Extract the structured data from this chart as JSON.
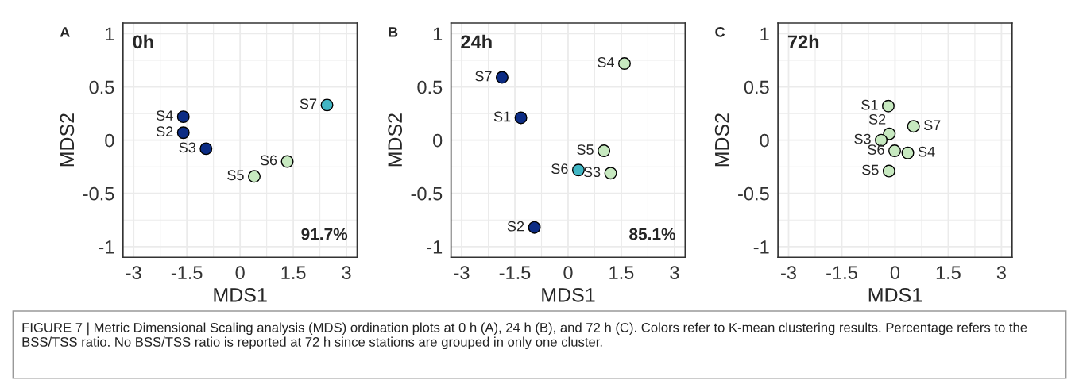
{
  "chart_data": [
    {
      "type": "scatter",
      "xlabel": "MDS1",
      "ylabel": "MDS2",
      "xlim": [
        -3.3,
        3.3
      ],
      "ylim": [
        -1.1,
        1.1
      ],
      "xticks": [
        -3,
        -1.5,
        0,
        1.5,
        3
      ],
      "yticks": [
        -1,
        -0.5,
        0,
        0.5,
        1
      ],
      "grid": true,
      "marker": "circle",
      "x": [
        -1.6,
        -1.6,
        -0.96,
        0.4,
        1.33,
        2.45
      ],
      "values": [
        0.22,
        0.07,
        -0.08,
        -0.34,
        -0.2,
        0.33
      ],
      "colors": [
        "#0c2c84",
        "#0c2c84",
        "#0c2c84",
        "#c7e9c0",
        "#c7e9c0",
        "#41b6c4"
      ],
      "annotations": [
        "A",
        "0h",
        "91.7%",
        {
          "text": "S4",
          "x": -1.6,
          "y": 0.22
        },
        {
          "text": "S2",
          "x": -1.6,
          "y": 0.07
        },
        {
          "text": "S3",
          "x": -0.96,
          "y": -0.08
        },
        {
          "text": "S5",
          "x": 0.4,
          "y": -0.34
        },
        {
          "text": "S6",
          "x": 1.33,
          "y": -0.2
        },
        {
          "text": "S7",
          "x": 2.45,
          "y": 0.33
        }
      ]
    },
    {
      "type": "scatter",
      "xlabel": "MDS1",
      "ylabel": "MDS2",
      "xlim": [
        -3.3,
        3.3
      ],
      "ylim": [
        -1.1,
        1.1
      ],
      "xticks": [
        -3,
        -1.5,
        0,
        1.5,
        3
      ],
      "yticks": [
        -1,
        -0.5,
        0,
        0.5,
        1
      ],
      "grid": true,
      "marker": "circle",
      "x": [
        -1.86,
        -1.33,
        -0.95,
        0.29,
        1.2,
        1.01,
        1.59
      ],
      "values": [
        0.59,
        0.21,
        -0.82,
        -0.28,
        -0.31,
        -0.1,
        0.72
      ],
      "colors": [
        "#0c2c84",
        "#0c2c84",
        "#0c2c84",
        "#41b6c4",
        "#c7e9c0",
        "#c7e9c0",
        "#c7e9c0"
      ],
      "annotations": [
        "B",
        "24h",
        "85.1%",
        {
          "text": "S7",
          "x": -1.86,
          "y": 0.59
        },
        {
          "text": "S1",
          "x": -1.33,
          "y": 0.21
        },
        {
          "text": "S2",
          "x": -0.95,
          "y": -0.82
        },
        {
          "text": "S6",
          "x": 0.29,
          "y": -0.28
        },
        {
          "text": "S3",
          "x": 1.2,
          "y": -0.31
        },
        {
          "text": "S5",
          "x": 1.01,
          "y": -0.1
        },
        {
          "text": "S4",
          "x": 1.59,
          "y": 0.72
        }
      ]
    },
    {
      "type": "scatter",
      "xlabel": "MDS1",
      "ylabel": "MDS2",
      "xlim": [
        -3.3,
        3.3
      ],
      "ylim": [
        -1.1,
        1.1
      ],
      "xticks": [
        -3,
        -1.5,
        0,
        1.5,
        3
      ],
      "yticks": [
        -1,
        -0.5,
        0,
        0.5,
        1
      ],
      "grid": true,
      "marker": "circle",
      "x": [
        -0.19,
        -0.16,
        -0.39,
        -0.01,
        0.36,
        0.52,
        -0.17
      ],
      "values": [
        0.32,
        0.06,
        0.0,
        -0.1,
        -0.12,
        0.13,
        -0.29
      ],
      "colors": [
        "#c7e9c0",
        "#c7e9c0",
        "#c7e9c0",
        "#c7e9c0",
        "#c7e9c0",
        "#c7e9c0",
        "#c7e9c0"
      ],
      "annotations": [
        "C",
        "72h",
        {
          "text": "S1",
          "x": -0.19,
          "y": 0.32
        },
        {
          "text": "S2",
          "x": -0.16,
          "y": 0.06
        },
        {
          "text": "S3",
          "x": -0.39,
          "y": 0.0
        },
        {
          "text": "S6",
          "x": -0.01,
          "y": -0.1
        },
        {
          "text": "S4",
          "x": 0.36,
          "y": -0.12
        },
        {
          "text": "S7",
          "x": 0.52,
          "y": 0.13
        },
        {
          "text": "S5",
          "x": -0.17,
          "y": -0.29
        },
        "FIGURE 7 | Metric Dimensional Scaling analysis (MDS) ordination plots at 0 h (A), 24 h (B), and 72 h (C). Colors refer to K-mean clustering results. Percentage refers to the BSS/TSS ratio. No BSS/TSS ratio is reported at 72 h since stations are grouped in only one cluster."
      ]
    }
  ]
}
